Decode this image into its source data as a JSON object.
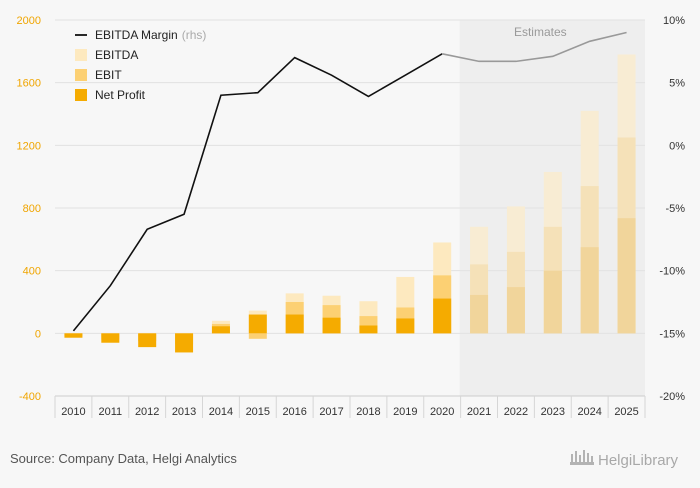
{
  "colors": {
    "ebitda": "#fde9bf",
    "ebit": "#fcd073",
    "net_profit": "#f5ab00",
    "ebitda_est": "#f8ecd3",
    "ebit_est": "#f5e1b8",
    "net_profit_est": "#f1d59b",
    "margin_line": "#111111",
    "margin_line_est": "#999999",
    "estimates_band": "#eeeeee",
    "left_axis_text": "#f0a500",
    "grid": "#e2e2e2"
  },
  "source": "Source: Company Data, Helgi Analytics",
  "brand": "HelgiLibrary",
  "chart_data": {
    "type": "bar",
    "categories": [
      "2010",
      "2011",
      "2012",
      "2013",
      "2014",
      "2015",
      "2016",
      "2017",
      "2018",
      "2019",
      "2020",
      "2021",
      "2022",
      "2023",
      "2024",
      "2025"
    ],
    "estimates_label": "Estimates",
    "estimates_from": "2021",
    "y_left": {
      "min": -400,
      "max": 2000,
      "ticks": [
        -400,
        0,
        400,
        800,
        1200,
        1600,
        2000
      ],
      "tick_labels": [
        "-400",
        "0",
        "400",
        "800",
        "1200",
        "1600",
        "2000"
      ]
    },
    "y_right": {
      "min": -20,
      "max": 10,
      "ticks": [
        -20,
        -15,
        -10,
        -5,
        0,
        5,
        10
      ],
      "tick_labels": [
        "-20%",
        "-15%",
        "-10%",
        "-5%",
        "0%",
        "5%",
        "10%"
      ]
    },
    "legend": {
      "position": "top-left",
      "items": [
        {
          "key": "margin",
          "label": "EBITDA Margin",
          "suffix": "(rhs)"
        },
        {
          "key": "ebitda",
          "label": "EBITDA"
        },
        {
          "key": "ebit",
          "label": "EBIT"
        },
        {
          "key": "net_profit",
          "label": "Net Profit"
        }
      ]
    },
    "series": [
      {
        "name": "EBITDA",
        "values": [
          -12,
          -22,
          -25,
          -20,
          80,
          145,
          255,
          240,
          205,
          360,
          580,
          680,
          810,
          1030,
          1420,
          1780
        ]
      },
      {
        "name": "EBIT",
        "values": [
          -16,
          -40,
          -50,
          -70,
          60,
          -35,
          200,
          180,
          110,
          165,
          370,
          440,
          520,
          680,
          940,
          1250
        ]
      },
      {
        "name": "Net Profit",
        "values": [
          -28,
          -60,
          -88,
          -122,
          45,
          120,
          120,
          100,
          50,
          95,
          222,
          245,
          295,
          400,
          550,
          735
        ]
      },
      {
        "name": "EBITDA Margin",
        "axis": "right",
        "values": [
          -14.8,
          -11.2,
          -6.7,
          -5.5,
          4.0,
          4.2,
          7.0,
          5.6,
          3.9,
          5.6,
          7.3,
          6.7,
          6.7,
          7.1,
          8.3,
          9.0
        ]
      }
    ]
  }
}
